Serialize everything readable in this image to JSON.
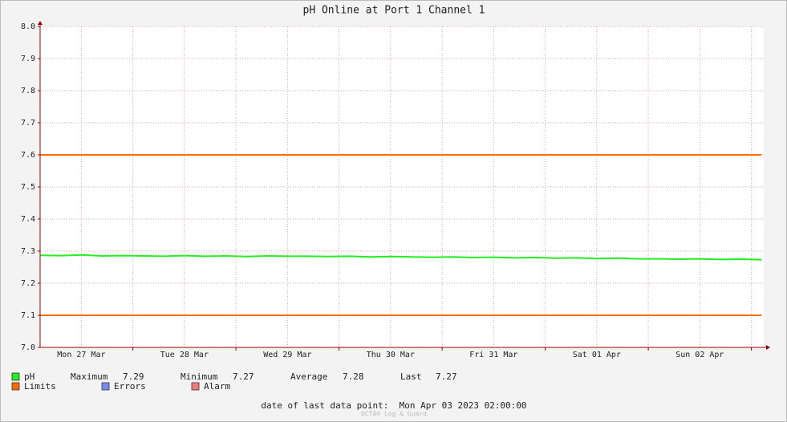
{
  "chart_data": {
    "type": "line",
    "title": "pH Online at Port 1 Channel 1",
    "xlim": [
      0.1,
      7.12
    ],
    "xticks": [
      {
        "value": 0.5,
        "label": "Mon 27 Mar"
      },
      {
        "value": 1.5,
        "label": "Tue 28 Mar"
      },
      {
        "value": 2.5,
        "label": "Wed 29 Mar"
      },
      {
        "value": 3.5,
        "label": "Thu 30 Mar"
      },
      {
        "value": 4.5,
        "label": "Fri 31 Mar"
      },
      {
        "value": 5.5,
        "label": "Sat 01 Apr"
      },
      {
        "value": 6.5,
        "label": "Sun 02 Apr"
      }
    ],
    "xmajor_ticks": [
      1,
      2,
      3,
      4,
      5,
      6,
      7
    ],
    "ylim": [
      7.0,
      8.0
    ],
    "yticks": [
      {
        "value": 7.0,
        "label": "7.0"
      },
      7.1,
      7.2,
      7.3,
      7.4,
      7.5,
      7.6,
      7.7,
      7.8,
      7.9,
      {
        "value": 8.0,
        "label": "8.0"
      }
    ],
    "grid": true,
    "x": [
      0.1,
      0.3,
      0.5,
      0.7,
      0.9,
      1.1,
      1.3,
      1.5,
      1.7,
      1.9,
      2.1,
      2.3,
      2.5,
      2.7,
      2.9,
      3.1,
      3.3,
      3.5,
      3.7,
      3.9,
      4.1,
      4.3,
      4.5,
      4.7,
      4.9,
      5.1,
      5.3,
      5.5,
      5.7,
      5.9,
      6.1,
      6.3,
      6.5,
      6.7,
      6.9,
      7.1
    ],
    "series": [
      {
        "name": "pH",
        "color": "#22ee22",
        "values": [
          7.287,
          7.286,
          7.288,
          7.285,
          7.286,
          7.285,
          7.284,
          7.286,
          7.284,
          7.285,
          7.283,
          7.285,
          7.284,
          7.284,
          7.283,
          7.284,
          7.282,
          7.283,
          7.282,
          7.281,
          7.282,
          7.28,
          7.281,
          7.279,
          7.28,
          7.278,
          7.279,
          7.277,
          7.278,
          7.276,
          7.276,
          7.275,
          7.276,
          7.274,
          7.275,
          7.273
        ]
      }
    ],
    "limits": {
      "name": "Limits",
      "color": "#ff6a00",
      "values": [
        7.6,
        7.1
      ]
    },
    "legend_extra": [
      {
        "name": "Errors",
        "color": "#7b8cf0"
      },
      {
        "name": "Alarm",
        "color": "#f07b7b"
      }
    ],
    "stats": [
      {
        "label": "Maximum",
        "value": 7.29
      },
      {
        "label": "Minimum",
        "value": 7.27
      },
      {
        "label": "Average",
        "value": 7.28
      },
      {
        "label": "Last",
        "value": 7.27
      }
    ],
    "footer": "date of last data point:  Mon Apr 03 2023 02:00:00",
    "watermark": "OCTA® Log & Guard"
  }
}
